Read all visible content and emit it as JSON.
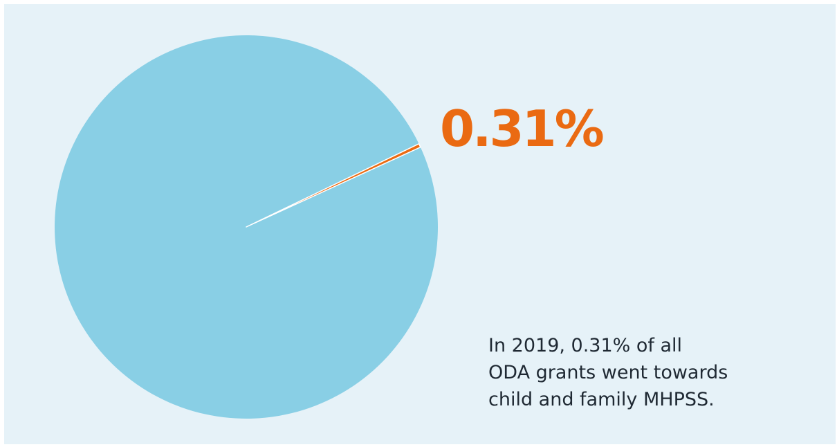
{
  "chart_data": {
    "type": "pie",
    "slices": [
      {
        "label": "child and family MHPSS",
        "value": 0.31,
        "color": "#ea6a12"
      },
      {
        "label": "",
        "value": 99.69,
        "color": "#89cfe5"
      }
    ],
    "data_label": "0.31%",
    "annotation": [
      "In 2019, 0.31% of all",
      "ODA grants went towards",
      "child and family MHPSS."
    ]
  },
  "colors": {
    "background": "#e6f2f8",
    "accent": "#ea6a12",
    "pie": "#89cfe5",
    "text": "#1f2933"
  }
}
